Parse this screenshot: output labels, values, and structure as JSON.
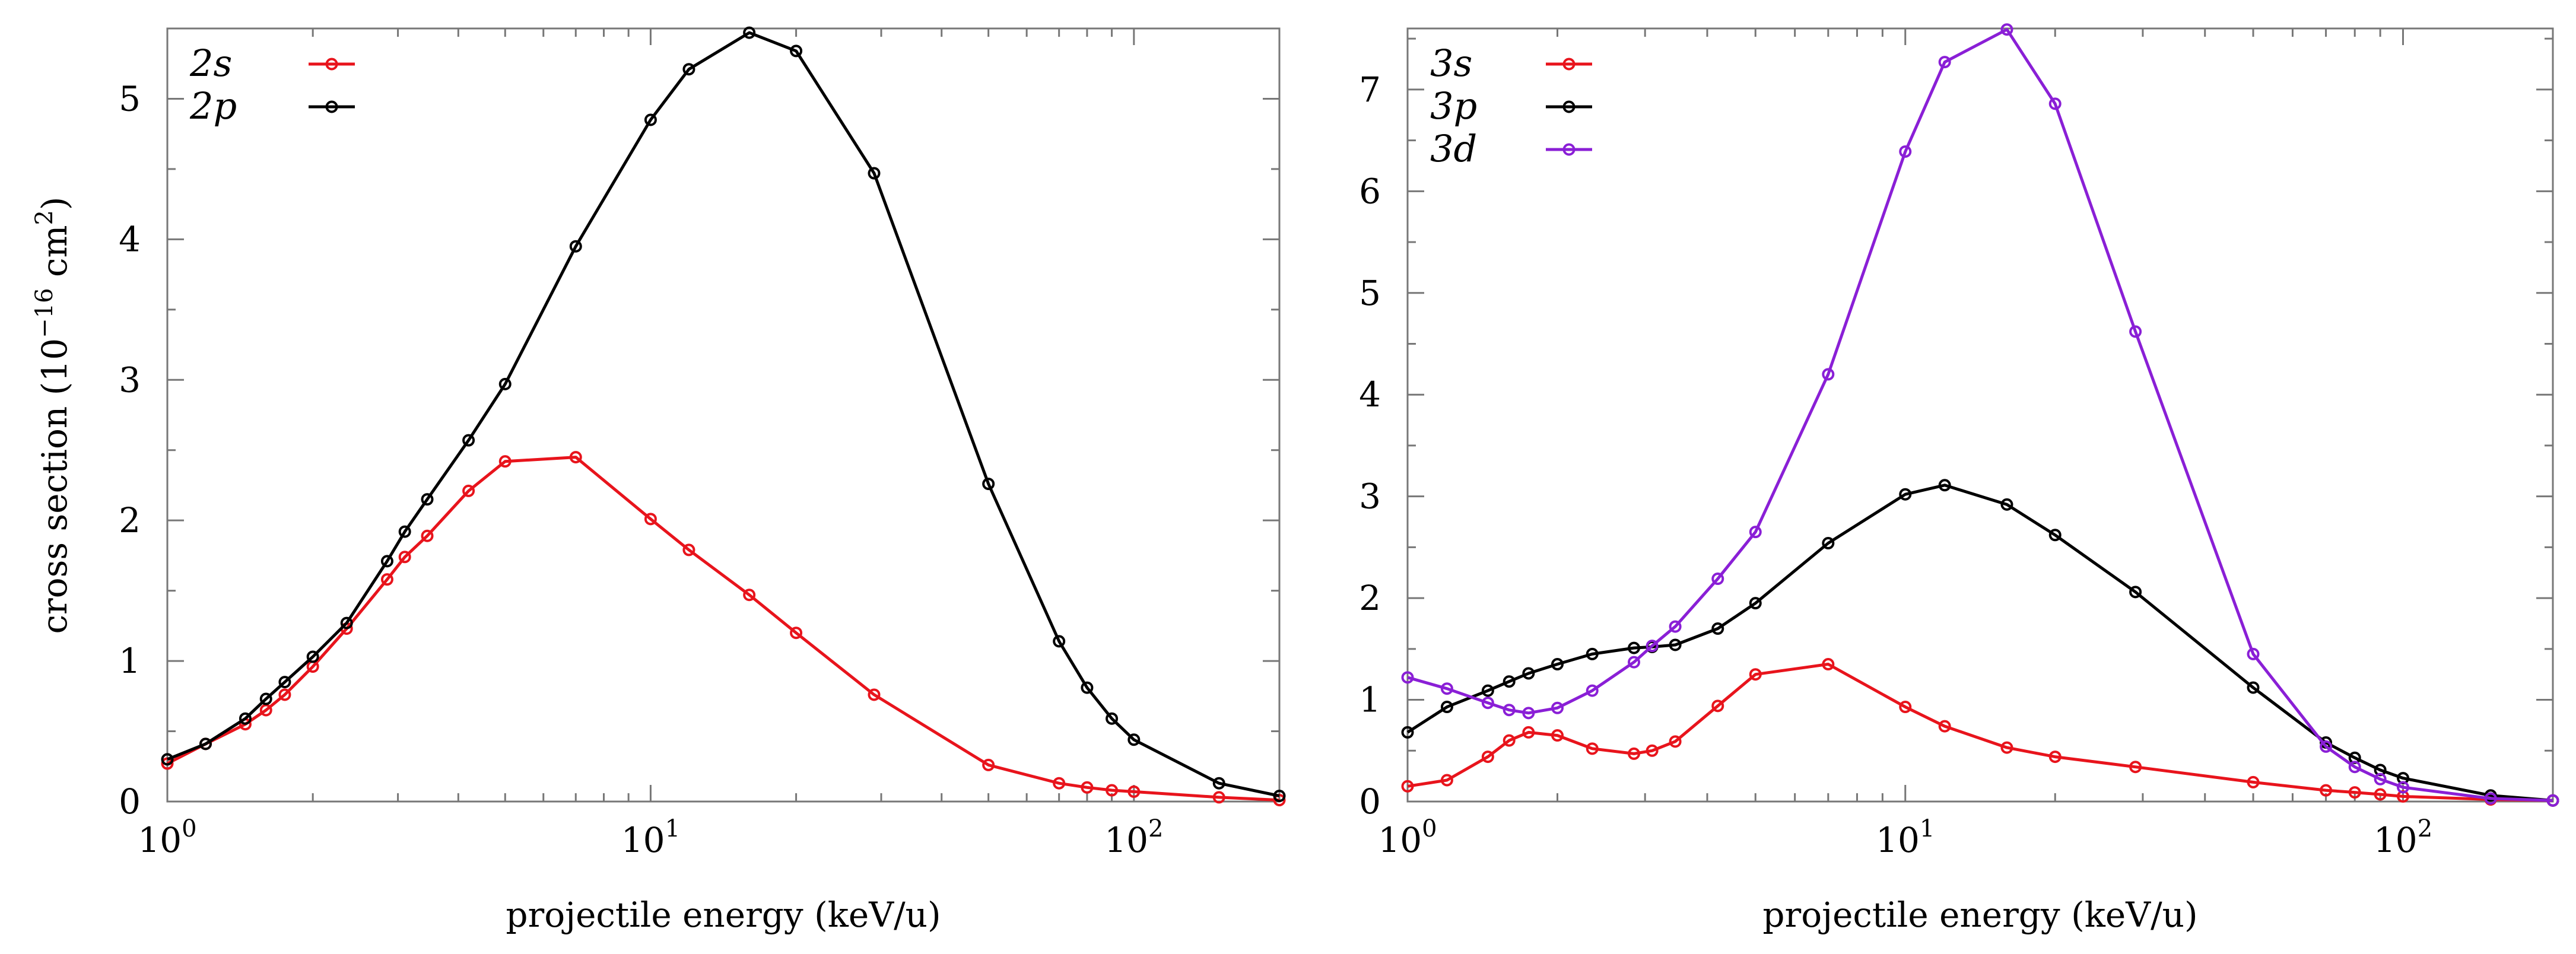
{
  "chart_data": [
    {
      "type": "line",
      "x_scale": "log",
      "xlim": [
        1,
        200
      ],
      "ylim": [
        0,
        5.5
      ],
      "xlabel": "projectile energy (keV/u)",
      "ylabel": "cross section (10",
      "ylabel_exp": "−16",
      "ylabel_unit": " cm",
      "ylabel_unit_exp": "2",
      "ylabel_close": ")",
      "x_ticks": [
        {
          "value": 1,
          "base": "10",
          "exp": "0"
        },
        {
          "value": 10,
          "base": "10",
          "exp": "1"
        },
        {
          "value": 100,
          "base": "10",
          "exp": "2"
        }
      ],
      "y_ticks": [
        0,
        1,
        2,
        3,
        4,
        5
      ],
      "legend_position": "top-left",
      "series": [
        {
          "name": "2s",
          "color": "#e8141c",
          "x": [
            1,
            1.2,
            1.45,
            1.6,
            1.75,
            2,
            2.35,
            2.85,
            3.1,
            3.45,
            4.2,
            5,
            7,
            10,
            12,
            16,
            20,
            29,
            50,
            70,
            80,
            90,
            100,
            150,
            200
          ],
          "y": [
            0.27,
            0.41,
            0.55,
            0.65,
            0.76,
            0.96,
            1.23,
            1.58,
            1.74,
            1.89,
            2.21,
            2.42,
            2.45,
            2.01,
            1.79,
            1.47,
            1.2,
            0.76,
            0.26,
            0.13,
            0.1,
            0.08,
            0.07,
            0.03,
            0.01
          ]
        },
        {
          "name": "2p",
          "color": "#000000",
          "x": [
            1,
            1.2,
            1.45,
            1.6,
            1.75,
            2,
            2.35,
            2.85,
            3.1,
            3.45,
            4.2,
            5,
            7,
            10,
            12,
            16,
            20,
            29,
            50,
            70,
            80,
            90,
            100,
            150,
            200
          ],
          "y": [
            0.3,
            0.41,
            0.59,
            0.73,
            0.85,
            1.03,
            1.27,
            1.71,
            1.92,
            2.15,
            2.57,
            2.97,
            3.95,
            4.85,
            5.21,
            5.47,
            5.34,
            4.47,
            2.26,
            1.14,
            0.81,
            0.59,
            0.44,
            0.13,
            0.04
          ]
        }
      ]
    },
    {
      "type": "line",
      "x_scale": "log",
      "xlim": [
        1,
        200
      ],
      "ylim": [
        0,
        7.6
      ],
      "xlabel": "projectile energy (keV/u)",
      "ylabel": "",
      "x_ticks": [
        {
          "value": 1,
          "base": "10",
          "exp": "0"
        },
        {
          "value": 10,
          "base": "10",
          "exp": "1"
        },
        {
          "value": 100,
          "base": "10",
          "exp": "2"
        }
      ],
      "y_ticks": [
        0,
        1,
        2,
        3,
        4,
        5,
        6,
        7
      ],
      "legend_position": "top-left",
      "series": [
        {
          "name": "3s",
          "color": "#e8141c",
          "x": [
            1,
            1.2,
            1.45,
            1.6,
            1.75,
            2,
            2.35,
            2.85,
            3.1,
            3.45,
            4.2,
            5,
            7,
            10,
            12,
            16,
            20,
            29,
            50,
            70,
            80,
            90,
            100,
            150,
            200
          ],
          "y": [
            0.15,
            0.21,
            0.44,
            0.6,
            0.68,
            0.65,
            0.52,
            0.47,
            0.5,
            0.59,
            0.94,
            1.25,
            1.35,
            0.93,
            0.74,
            0.53,
            0.44,
            0.34,
            0.19,
            0.11,
            0.09,
            0.07,
            0.05,
            0.02,
            0.01
          ]
        },
        {
          "name": "3p",
          "color": "#000000",
          "x": [
            1,
            1.2,
            1.45,
            1.6,
            1.75,
            2,
            2.35,
            2.85,
            3.1,
            3.45,
            4.2,
            5,
            7,
            10,
            12,
            16,
            20,
            29,
            50,
            70,
            80,
            90,
            100,
            150,
            200
          ],
          "y": [
            0.68,
            0.93,
            1.09,
            1.18,
            1.26,
            1.35,
            1.45,
            1.51,
            1.52,
            1.54,
            1.7,
            1.95,
            2.54,
            3.02,
            3.11,
            2.92,
            2.62,
            2.06,
            1.12,
            0.58,
            0.43,
            0.31,
            0.23,
            0.06,
            0.01
          ]
        },
        {
          "name": "3d",
          "color": "#8a1fd6",
          "x": [
            1,
            1.2,
            1.45,
            1.6,
            1.75,
            2,
            2.35,
            2.85,
            3.1,
            3.45,
            4.2,
            5,
            7,
            10,
            12,
            16,
            20,
            29,
            50,
            70,
            80,
            90,
            100,
            150,
            200
          ],
          "y": [
            1.22,
            1.11,
            0.97,
            0.9,
            0.87,
            0.92,
            1.09,
            1.37,
            1.53,
            1.72,
            2.19,
            2.65,
            4.2,
            6.39,
            7.27,
            7.59,
            6.86,
            4.62,
            1.45,
            0.54,
            0.34,
            0.22,
            0.14,
            0.03,
            0.01
          ]
        }
      ]
    }
  ]
}
